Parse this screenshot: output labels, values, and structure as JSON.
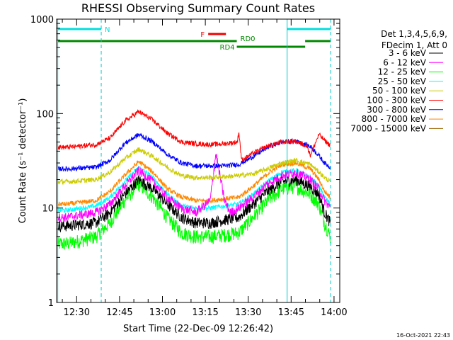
{
  "chart_data": {
    "type": "line",
    "title": "RHESSI Observing Summary Count Rates",
    "xlabel": "Start Time (22-Dec-09 12:26:42)",
    "ylabel": "Count Rate (s⁻¹ detector⁻¹)",
    "yscale": "log",
    "ylim": [
      1,
      1000
    ],
    "xlim_minutes_after_start": [
      -3.7,
      95.3
    ],
    "yticks": [
      {
        "value": 1,
        "label": "1"
      },
      {
        "value": 10,
        "label": "10"
      },
      {
        "value": 100,
        "label": "100"
      },
      {
        "value": 1000,
        "label": "1000"
      }
    ],
    "xticks": [
      {
        "minutes": 3.3,
        "label": "12:30"
      },
      {
        "minutes": 18.3,
        "label": "12:45"
      },
      {
        "minutes": 33.3,
        "label": "13:00"
      },
      {
        "minutes": 48.3,
        "label": "13:15"
      },
      {
        "minutes": 63.3,
        "label": "13:30"
      },
      {
        "minutes": 78.3,
        "label": "13:45"
      },
      {
        "minutes": 93.3,
        "label": "14:00"
      }
    ],
    "legend": {
      "position": "right",
      "header": [
        "Det 1,3,4,5,6,9,",
        "FDecim 1, Att 0"
      ]
    },
    "series": [
      {
        "name": "3 - 6 keV",
        "color": "#000000",
        "x": [
          0,
          10,
          15,
          20,
          25,
          30,
          35,
          40,
          45,
          50,
          55,
          60,
          65,
          70,
          75,
          80,
          85,
          88,
          90,
          92,
          95
        ],
        "y": [
          6.5,
          7,
          9,
          14,
          20,
          16,
          11,
          8,
          7,
          7,
          7.5,
          8,
          11,
          15,
          19,
          20,
          17,
          14,
          9,
          7,
          6.5
        ]
      },
      {
        "name": "6 - 12 keV",
        "color": "#ff00ff",
        "x": [
          0,
          10,
          15,
          20,
          25,
          30,
          35,
          40,
          45,
          50,
          52,
          55,
          57,
          60,
          65,
          70,
          75,
          80,
          85,
          88,
          90,
          92,
          95
        ],
        "y": [
          8,
          9,
          11,
          17,
          25,
          19,
          13,
          10,
          9,
          12,
          38,
          12,
          9,
          10,
          13,
          18,
          22,
          24,
          20,
          16,
          12,
          10,
          9
        ]
      },
      {
        "name": "12 - 25 keV",
        "color": "#00ff00",
        "x": [
          0,
          10,
          15,
          20,
          25,
          30,
          35,
          40,
          45,
          50,
          55,
          60,
          65,
          70,
          75,
          80,
          85,
          88,
          90,
          92,
          95
        ],
        "y": [
          4.2,
          5,
          7,
          12,
          18,
          13,
          8,
          5.5,
          5,
          5,
          5.2,
          5.5,
          8,
          12,
          16,
          17,
          14,
          11,
          7,
          5,
          4.5
        ]
      },
      {
        "name": "25 - 50 keV",
        "color": "#00ffff",
        "x": [
          0,
          10,
          15,
          20,
          25,
          30,
          35,
          40,
          45,
          50,
          55,
          60,
          65,
          70,
          75,
          80,
          85,
          88,
          90,
          92,
          95
        ],
        "y": [
          9.5,
          10.5,
          13,
          19,
          27,
          21,
          14,
          10.5,
          10,
          10,
          10.5,
          11,
          14,
          19,
          24,
          25,
          21,
          17,
          13,
          11,
          10
        ]
      },
      {
        "name": "50 - 100 keV",
        "color": "#cccc00",
        "x": [
          0,
          10,
          15,
          20,
          25,
          30,
          35,
          40,
          45,
          50,
          55,
          60,
          65,
          70,
          75,
          80,
          85,
          88,
          90,
          92,
          95
        ],
        "y": [
          19,
          20,
          24,
          33,
          42,
          35,
          27,
          22,
          21,
          21,
          21.5,
          22,
          23,
          26,
          30,
          32,
          29,
          24,
          21,
          19,
          18.5
        ]
      },
      {
        "name": "100 - 300 keV",
        "color": "#ff0000",
        "x": [
          0,
          10,
          15,
          20,
          25,
          30,
          35,
          40,
          45,
          50,
          55,
          59.5,
          60,
          61,
          65,
          70,
          75,
          80,
          84,
          85,
          88,
          90,
          92,
          95
        ],
        "y": [
          44,
          47,
          55,
          82,
          105,
          85,
          62,
          50,
          48,
          47,
          48,
          50,
          65,
          32,
          38,
          45,
          50,
          51,
          45,
          36,
          60,
          52,
          46,
          45
        ]
      },
      {
        "name": "300 - 800 keV",
        "color": "#0000ff",
        "x": [
          0,
          10,
          15,
          20,
          25,
          30,
          35,
          40,
          45,
          50,
          55,
          60,
          65,
          70,
          75,
          80,
          85,
          88,
          90,
          92,
          95
        ],
        "y": [
          26,
          27,
          32,
          48,
          60,
          50,
          37,
          30,
          28,
          28,
          28,
          29,
          35,
          44,
          50,
          51,
          45,
          36,
          30,
          27,
          26
        ]
      },
      {
        "name": "800 - 7000 keV",
        "color": "#ff8800",
        "x": [
          0,
          10,
          15,
          20,
          25,
          30,
          35,
          40,
          45,
          50,
          55,
          60,
          65,
          70,
          75,
          80,
          85,
          88,
          90,
          92,
          95
        ],
        "y": [
          11,
          12,
          15,
          22,
          31,
          24,
          16,
          13,
          12,
          12,
          12.5,
          13,
          17,
          23,
          29,
          30,
          26,
          20,
          15,
          13,
          12
        ]
      },
      {
        "name": "7000 - 15000 keV",
        "color": "#996600",
        "x": [],
        "y": []
      }
    ],
    "vertical_markers": [
      {
        "minutes": -3.3,
        "style": "solid",
        "color": "#00cccc"
      },
      {
        "minutes": 11.9,
        "style": "dashed",
        "color": "#00cccc"
      },
      {
        "minutes": 76.9,
        "style": "solid",
        "color": "#00cccc"
      },
      {
        "minutes": 92.1,
        "style": "dashed",
        "color": "#00cccc"
      }
    ],
    "state_bars": [
      {
        "label": "N",
        "color": "#00dddd",
        "segments": [
          [
            -3.3,
            11.9
          ],
          [
            76.9,
            92.1
          ]
        ],
        "level": 0
      },
      {
        "label": "F",
        "color": "#ee0000",
        "segments": [
          [
            49.3,
            55.5
          ]
        ],
        "level": 1
      },
      {
        "label": "RD0",
        "color": "#008800",
        "segments": [
          [
            -3.3,
            59.3
          ],
          [
            83.2,
            92.1
          ]
        ],
        "level": 2
      },
      {
        "label": "RD4",
        "color": "#008800",
        "segments": [
          [
            59.3,
            83.2
          ]
        ],
        "level": 3
      }
    ]
  },
  "footer": {
    "timestamp": "16-Oct-2021 22:43"
  }
}
